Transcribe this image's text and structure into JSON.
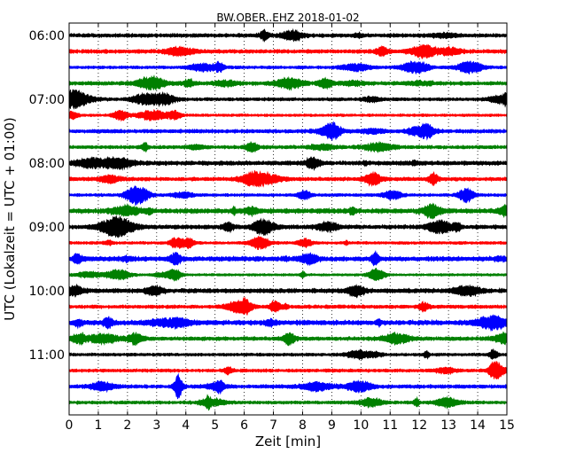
{
  "chart_data": {
    "type": "line",
    "title": "BW.OBER..EHZ 2018-01-02",
    "xlabel": "Zeit  [min]",
    "ylabel": "UTC (Lokalzeit = UTC + 01:00)",
    "xlim": [
      0,
      15
    ],
    "x_ticks": [
      "0",
      "1",
      "2",
      "3",
      "4",
      "5",
      "6",
      "7",
      "8",
      "9",
      "10",
      "11",
      "12",
      "13",
      "14",
      "15"
    ],
    "y_tick_labels": [
      "06:00",
      "07:00",
      "08:00",
      "09:00",
      "10:00",
      "11:00"
    ],
    "grid": "vertical dotted",
    "trace_interval_minutes": 15,
    "colors": [
      "#000000",
      "#ff0000",
      "#0000ff",
      "#008000"
    ],
    "traces": [
      {
        "start": "06:00",
        "color": "#000000"
      },
      {
        "start": "06:15",
        "color": "#ff0000"
      },
      {
        "start": "06:30",
        "color": "#0000ff"
      },
      {
        "start": "06:45",
        "color": "#008000"
      },
      {
        "start": "07:00",
        "color": "#000000"
      },
      {
        "start": "07:15",
        "color": "#ff0000"
      },
      {
        "start": "07:30",
        "color": "#0000ff"
      },
      {
        "start": "07:45",
        "color": "#008000"
      },
      {
        "start": "08:00",
        "color": "#000000"
      },
      {
        "start": "08:15",
        "color": "#ff0000"
      },
      {
        "start": "08:30",
        "color": "#0000ff"
      },
      {
        "start": "08:45",
        "color": "#008000"
      },
      {
        "start": "09:00",
        "color": "#000000"
      },
      {
        "start": "09:15",
        "color": "#ff0000"
      },
      {
        "start": "09:30",
        "color": "#0000ff"
      },
      {
        "start": "09:45",
        "color": "#008000"
      },
      {
        "start": "10:00",
        "color": "#000000"
      },
      {
        "start": "10:15",
        "color": "#ff0000"
      },
      {
        "start": "10:30",
        "color": "#0000ff"
      },
      {
        "start": "10:45",
        "color": "#008000"
      },
      {
        "start": "11:00",
        "color": "#000000"
      },
      {
        "start": "11:15",
        "color": "#ff0000"
      },
      {
        "start": "11:30",
        "color": "#0000ff"
      },
      {
        "start": "11:45",
        "color": "#008000"
      }
    ]
  }
}
